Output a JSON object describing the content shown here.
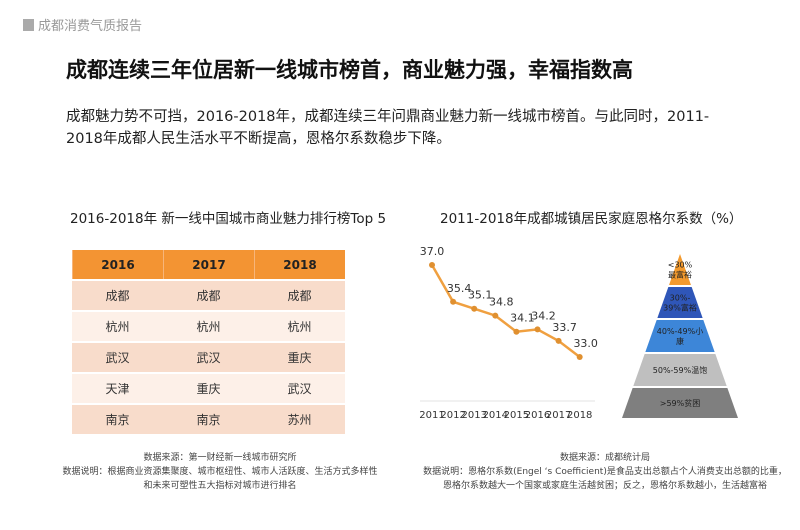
{
  "header": {
    "section": "成都消费气质报告"
  },
  "title": "成都连续三年位居新一线城市榜首，商业魅力强，幸福指数高",
  "paragraph": "成都魅力势不可挡，2016-2018年，成都连续三年问鼎商业魅力新一线城市榜首。与此同时，2011-2018年成都人民生活水平不断提高，恩格尔系数稳步下降。",
  "left": {
    "title": "2016-2018年 新一线中国城市商业魅力排行榜Top 5",
    "columns": [
      "2016",
      "2017",
      "2018"
    ],
    "rows": [
      [
        "成都",
        "成都",
        "成都"
      ],
      [
        "杭州",
        "杭州",
        "杭州"
      ],
      [
        "武汉",
        "武汉",
        "重庆"
      ],
      [
        "天津",
        "重庆",
        "武汉"
      ],
      [
        "南京",
        "南京",
        "苏州"
      ]
    ],
    "source": "数据来源：第一财经新一线城市研究所",
    "note1": "数据说明：根据商业资源集聚度、城市枢纽性、城市人活跃度、生活方式多样性",
    "note2": "和未来可塑性五大指标对城市进行排名",
    "header_color": "#f39433"
  },
  "chart_data": {
    "type": "line",
    "title": "2011-2018年成都城镇居民家庭恩格尔系数（%）",
    "x": [
      "2011",
      "2012",
      "2013",
      "2014",
      "2015",
      "2016",
      "2017",
      "2018"
    ],
    "values": [
      37.0,
      35.4,
      35.1,
      34.8,
      34.1,
      34.2,
      33.7,
      33.0
    ],
    "data_labels": [
      "37.0",
      "35.4",
      "35.1",
      "34.8",
      "34.1",
      "34.2",
      "33.7",
      "33.0"
    ],
    "color": "#f0a040",
    "grid": false
  },
  "pyramid": {
    "levels": [
      {
        "label1": "<30%",
        "label2": "最富裕",
        "color": "#f39a2e"
      },
      {
        "label1": "30%-",
        "label2": "39%富裕",
        "color": "#2f56b8"
      },
      {
        "label1": "40%-49%小",
        "label2": "康",
        "color": "#3d86d8"
      },
      {
        "label1": "50%-59%温饱",
        "label2": "",
        "color": "#bfbfbf"
      },
      {
        "label1": ">59%贫困",
        "label2": "",
        "color": "#7f7f7f"
      }
    ]
  },
  "right": {
    "source": "数据来源：成都统计局",
    "note1": "数据说明：恩格尔系数(Engel ‘s Coefficient)是食品支出总额占个人消费支出总额的比重，",
    "note2": "恩格尔系数越大一个国家或家庭生活越贫困；反之，恩格尔系数越小，生活越富裕"
  }
}
